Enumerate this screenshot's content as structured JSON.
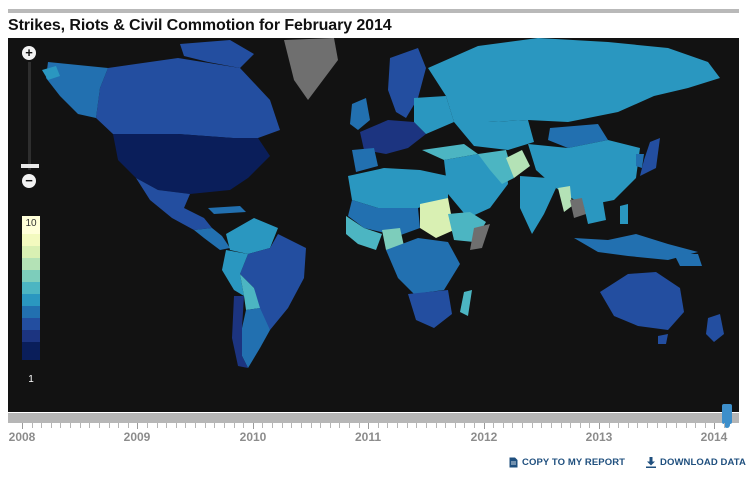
{
  "title": "Strikes, Riots & Civil Commotion for February 2014",
  "colors": {
    "map_background": "#121212",
    "no_data": "#6f6f6f",
    "link": "#1f4f7e",
    "timeline_handle": "#3d8fcb"
  },
  "zoom": {
    "in_icon": "plus-icon",
    "out_icon": "minus-icon",
    "in_label": "+",
    "out_label": "−"
  },
  "legend": {
    "max_label": "10",
    "min_label": "1",
    "scale_colors": [
      "#ffffd9",
      "#f3fabf",
      "#d9f0b3",
      "#b4e2b6",
      "#7dcdbb",
      "#4cb5c2",
      "#2a97c0",
      "#2270b0",
      "#234ea0",
      "#1c3480",
      "#0a1e5a"
    ]
  },
  "timeline": {
    "years": [
      "2008",
      "2009",
      "2010",
      "2011",
      "2012",
      "2013",
      "2014"
    ],
    "selected": "February 2014"
  },
  "actions": {
    "copy_label": "COPY TO MY REPORT",
    "copy_icon": "document-icon",
    "download_label": "DOWNLOAD DATA",
    "download_icon": "download-icon"
  }
}
